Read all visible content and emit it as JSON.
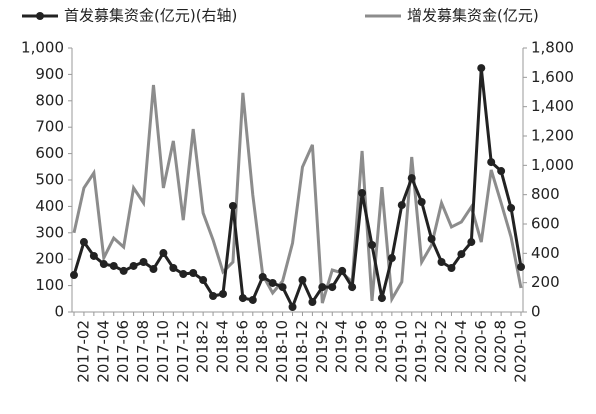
{
  "chart_data": {
    "type": "line",
    "categories": [
      null,
      "2017-02",
      null,
      "2017-04",
      null,
      "2017-06",
      null,
      "2017-08",
      null,
      "2017-10",
      null,
      "2017-12",
      null,
      "2018-2",
      null,
      "2018-4",
      null,
      "2018-6",
      null,
      "2018-8",
      null,
      "2018-10",
      null,
      "2018-12",
      null,
      "2019-2",
      null,
      "2019-4",
      null,
      "2019-6",
      null,
      "2019-8",
      null,
      "2019-10",
      null,
      "2019-12",
      null,
      "2020-2",
      null,
      "2020-4",
      null,
      "2020-6",
      null,
      "2020-8",
      null,
      "2020-10"
    ],
    "series": [
      {
        "name": "首发募集资金(亿元)(右轴)",
        "color": "#222222",
        "axis": "y2",
        "marker": true,
        "values": [
          252,
          477,
          382,
          327,
          314,
          280,
          314,
          341,
          293,
          402,
          300,
          259,
          266,
          218,
          109,
          123,
          723,
          95,
          82,
          239,
          198,
          170,
          34,
          218,
          68,
          170,
          170,
          280,
          170,
          811,
          457,
          95,
          368,
          729,
          913,
          750,
          498,
          341,
          300,
          395,
          477,
          1663,
          1022,
          961,
          709,
          307
        ]
      },
      {
        "name": "增发募集资金(亿元)",
        "color": "#8c8c8c",
        "marker": false,
        "values": [
          300,
          470,
          527,
          205,
          280,
          246,
          470,
          413,
          860,
          470,
          648,
          348,
          693,
          375,
          273,
          152,
          189,
          830,
          443,
          140,
          72,
          117,
          261,
          549,
          633,
          34,
          159,
          148,
          114,
          610,
          42,
          473,
          49,
          114,
          587,
          189,
          254,
          413,
          322,
          341,
          398,
          265,
          538,
          413,
          284,
          91
        ]
      }
    ],
    "ylim": [
      0,
      1000
    ],
    "yticks": [
      0,
      100,
      200,
      300,
      400,
      500,
      600,
      700,
      800,
      900,
      {
        "value": 1000,
        "label": "1,000"
      }
    ],
    "y2lim": [
      0,
      1800
    ],
    "y2ticks": [
      0,
      200,
      400,
      600,
      800,
      {
        "value": 1000,
        "label": "1,000"
      },
      {
        "value": 1200,
        "label": "1,200"
      },
      {
        "value": 1400,
        "label": "1,400"
      },
      {
        "value": 1600,
        "label": "1,600"
      },
      {
        "value": 1800,
        "label": "1,800"
      }
    ]
  }
}
